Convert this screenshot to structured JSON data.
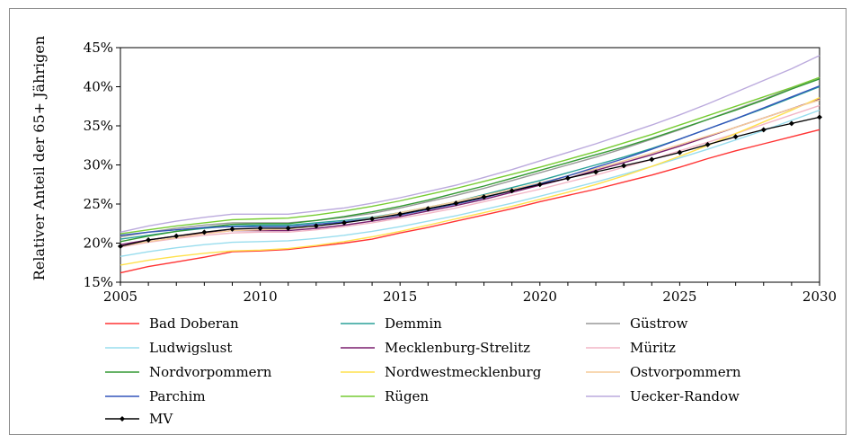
{
  "chart_data": {
    "type": "line",
    "ylabel": "Relativer Anteil der 65+ Jährigen",
    "xlabel": "",
    "xlim": [
      2005,
      2030
    ],
    "ylim": [
      15,
      45
    ],
    "x_ticks": [
      2005,
      2010,
      2015,
      2020,
      2025,
      2030
    ],
    "y_ticks": [
      {
        "value": 15,
        "label": "15%"
      },
      {
        "value": 20,
        "label": "20%"
      },
      {
        "value": 25,
        "label": "25%"
      },
      {
        "value": 30,
        "label": "30%"
      },
      {
        "value": 35,
        "label": "35%"
      },
      {
        "value": 40,
        "label": "40%"
      },
      {
        "value": 45,
        "label": "45%"
      }
    ],
    "grid": false,
    "legend_position": "bottom",
    "x": [
      2005,
      2006,
      2007,
      2008,
      2009,
      2010,
      2011,
      2012,
      2013,
      2014,
      2015,
      2016,
      2017,
      2018,
      2019,
      2020,
      2021,
      2022,
      2023,
      2024,
      2025,
      2026,
      2027,
      2028,
      2029,
      2030
    ],
    "series": [
      {
        "name": "Bad Doberan",
        "color": "#ff3333",
        "values": [
          16.2,
          17.0,
          17.6,
          18.2,
          18.9,
          19.0,
          19.2,
          19.6,
          20.0,
          20.5,
          21.3,
          22.0,
          22.8,
          23.6,
          24.4,
          25.3,
          26.1,
          26.9,
          27.8,
          28.7,
          29.7,
          30.8,
          31.8,
          32.7,
          33.6,
          34.5
        ]
      },
      {
        "name": "Demmin",
        "color": "#2aa198",
        "values": [
          20.5,
          21.0,
          21.5,
          21.9,
          22.2,
          22.3,
          22.3,
          22.6,
          22.9,
          23.3,
          23.9,
          24.6,
          25.3,
          26.2,
          27.1,
          28.0,
          29.0,
          30.0,
          31.0,
          32.1,
          33.3,
          34.6,
          35.9,
          37.2,
          38.6,
          40.0
        ]
      },
      {
        "name": "Güstrow",
        "color": "#999999",
        "values": [
          20.8,
          21.4,
          21.9,
          22.3,
          22.6,
          22.6,
          22.6,
          22.9,
          23.3,
          23.8,
          24.5,
          25.3,
          26.1,
          27.0,
          28.0,
          29.0,
          30.0,
          31.0,
          32.1,
          33.3,
          34.5,
          35.8,
          37.1,
          38.4,
          39.8,
          41.2
        ]
      },
      {
        "name": "Ludwigslust",
        "color": "#99ddee",
        "values": [
          18.3,
          18.9,
          19.4,
          19.8,
          20.1,
          20.2,
          20.3,
          20.6,
          21.0,
          21.5,
          22.1,
          22.8,
          23.5,
          24.3,
          25.1,
          26.0,
          26.9,
          27.8,
          28.8,
          29.8,
          30.9,
          32.0,
          33.2,
          34.4,
          35.7,
          37.0
        ]
      },
      {
        "name": "Mecklenburg-Strelitz",
        "color": "#7a1f6e",
        "values": [
          19.8,
          20.4,
          20.9,
          21.3,
          21.6,
          21.6,
          21.6,
          21.9,
          22.3,
          22.8,
          23.4,
          24.1,
          24.8,
          25.6,
          26.5,
          27.4,
          28.3,
          29.3,
          30.3,
          31.3,
          32.4,
          33.6,
          34.8,
          36.0,
          37.2,
          38.4
        ]
      },
      {
        "name": "Müritz",
        "color": "#f2b6c6",
        "values": [
          19.5,
          20.1,
          20.6,
          21.0,
          21.3,
          21.4,
          21.4,
          21.7,
          22.1,
          22.6,
          23.2,
          23.8,
          24.5,
          25.3,
          26.1,
          26.9,
          27.8,
          28.7,
          29.7,
          30.7,
          31.8,
          32.9,
          34.0,
          35.2,
          36.4,
          37.6
        ]
      },
      {
        "name": "Nordvorpommern",
        "color": "#339933",
        "values": [
          20.2,
          20.9,
          21.5,
          22.0,
          22.4,
          22.5,
          22.5,
          22.9,
          23.4,
          24.0,
          24.7,
          25.5,
          26.4,
          27.3,
          28.3,
          29.3,
          30.3,
          31.3,
          32.3,
          33.4,
          34.6,
          35.8,
          37.0,
          38.3,
          39.7,
          41.0
        ]
      },
      {
        "name": "Nordwestmecklenburg",
        "color": "#ffe14d",
        "values": [
          17.2,
          17.8,
          18.3,
          18.7,
          19.0,
          19.1,
          19.3,
          19.7,
          20.2,
          20.8,
          21.5,
          22.3,
          23.1,
          23.9,
          24.7,
          25.6,
          26.5,
          27.5,
          28.6,
          29.8,
          31.1,
          32.5,
          34.0,
          35.5,
          37.0,
          38.6
        ]
      },
      {
        "name": "Ostvorpommern",
        "color": "#f5cc99",
        "values": [
          19.6,
          20.2,
          20.7,
          21.2,
          21.6,
          21.7,
          21.8,
          22.2,
          22.7,
          23.2,
          23.9,
          24.6,
          25.3,
          26.1,
          26.9,
          27.7,
          28.6,
          29.5,
          30.5,
          31.5,
          32.6,
          33.7,
          34.8,
          36.0,
          37.2,
          38.3
        ]
      },
      {
        "name": "Parchim",
        "color": "#3355bb",
        "values": [
          21.0,
          21.4,
          21.7,
          22.0,
          22.1,
          22.1,
          22.1,
          22.4,
          22.7,
          23.1,
          23.6,
          24.3,
          25.0,
          25.8,
          26.7,
          27.6,
          28.6,
          29.7,
          30.8,
          32.0,
          33.3,
          34.6,
          35.9,
          37.3,
          38.7,
          40.1
        ]
      },
      {
        "name": "Rügen",
        "color": "#77cc33",
        "values": [
          21.2,
          21.7,
          22.2,
          22.6,
          23.0,
          23.1,
          23.2,
          23.6,
          24.1,
          24.7,
          25.4,
          26.2,
          27.0,
          27.9,
          28.8,
          29.7,
          30.7,
          31.7,
          32.8,
          33.9,
          35.1,
          36.3,
          37.5,
          38.7,
          39.9,
          41.2
        ]
      },
      {
        "name": "Uecker-Randow",
        "color": "#bbaadd",
        "values": [
          21.4,
          22.2,
          22.8,
          23.3,
          23.7,
          23.7,
          23.7,
          24.1,
          24.5,
          25.1,
          25.8,
          26.6,
          27.4,
          28.4,
          29.4,
          30.5,
          31.6,
          32.7,
          33.9,
          35.1,
          36.4,
          37.8,
          39.3,
          40.8,
          42.3,
          44.0
        ]
      },
      {
        "name": "MV",
        "color": "#000000",
        "marker": "diamond",
        "values": [
          19.6,
          20.4,
          20.9,
          21.4,
          21.8,
          21.9,
          21.9,
          22.2,
          22.6,
          23.1,
          23.7,
          24.4,
          25.1,
          25.9,
          26.7,
          27.5,
          28.3,
          29.1,
          29.9,
          30.7,
          31.6,
          32.6,
          33.6,
          34.5,
          35.3,
          36.1
        ]
      }
    ]
  }
}
